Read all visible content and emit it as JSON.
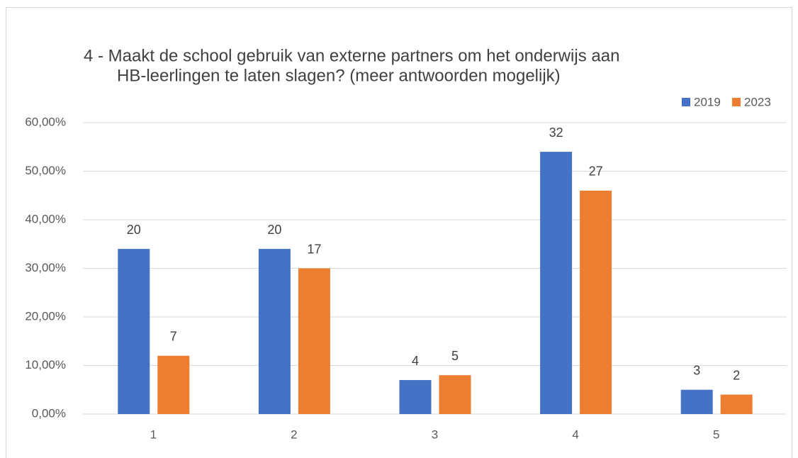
{
  "chart_data": {
    "type": "bar",
    "title": [
      "4 - Maakt de school gebruik van externe partners om het onderwijs aan",
      "HB-leerlingen te laten slagen? (meer antwoorden mogelijk)"
    ],
    "categories": [
      "1",
      "2",
      "3",
      "4",
      "5"
    ],
    "series": [
      {
        "name": "2019",
        "color": "#4472c4",
        "values": [
          34,
          34,
          7,
          54,
          5
        ],
        "counts": [
          20,
          20,
          4,
          32,
          3
        ]
      },
      {
        "name": "2023",
        "color": "#ed7d31",
        "values": [
          12,
          30,
          8,
          46,
          4
        ],
        "counts": [
          7,
          17,
          5,
          27,
          2
        ]
      }
    ],
    "ylim": [
      0,
      60
    ],
    "yticks": [
      {
        "value": 0,
        "label": "0,00%"
      },
      {
        "value": 10,
        "label": "10,00%"
      },
      {
        "value": 20,
        "label": "20,00%"
      },
      {
        "value": 30,
        "label": "30,00%"
      },
      {
        "value": 40,
        "label": "40,00%"
      },
      {
        "value": 50,
        "label": "50,00%"
      },
      {
        "value": 60,
        "label": "60,00%"
      }
    ],
    "grid": true,
    "legend": "top-right"
  }
}
